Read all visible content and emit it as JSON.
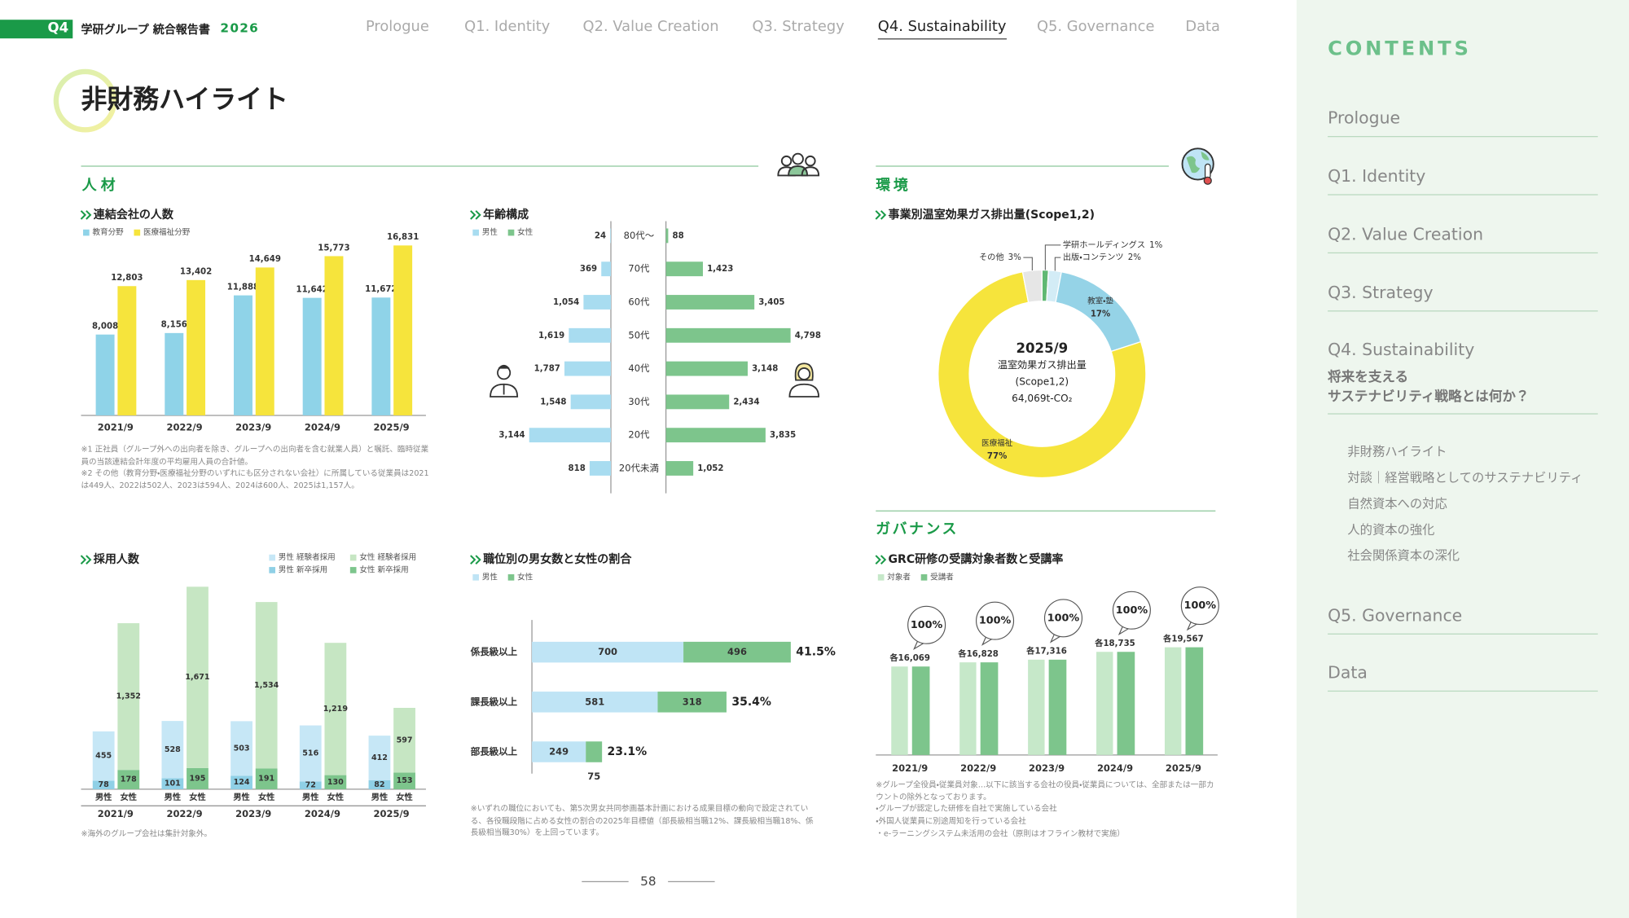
{
  "header": {
    "badge": "Q4",
    "report": "学研グループ 統合報告書",
    "year": "2026",
    "nav": [
      "Prologue",
      "Q1. Identity",
      "Q2. Value Creation",
      "Q3. Strategy",
      "Q4. Sustainability",
      "Q5. Governance",
      "Data"
    ],
    "active": 4
  },
  "page_title": "非財務ハイライト",
  "sections": {
    "people": "人材",
    "environment": "環境",
    "governance": "ガバナンス"
  },
  "chart_data": [
    {
      "type": "bar",
      "title": "連結会社の人数",
      "categories": [
        "2021/9",
        "2022/9",
        "2023/9",
        "2024/9",
        "2025/9"
      ],
      "series": [
        {
          "name": "教育分野",
          "color": "#8fd3e8",
          "values": [
            8008,
            8156,
            11888,
            11642,
            11672
          ],
          "value_labels": [
            "8,008",
            "8,156",
            "11,888",
            "11,642",
            "11,672"
          ]
        },
        {
          "name": "医療福祉分野",
          "color": "#f6e43c",
          "values": [
            12803,
            13402,
            14649,
            15773,
            16831
          ],
          "value_labels": [
            "12,803",
            "13,402",
            "14,649",
            "15,773",
            "16,831"
          ]
        }
      ],
      "ylim": [
        0,
        18000
      ]
    },
    {
      "type": "butterfly",
      "title": "年齢構成",
      "categories": [
        "80代～",
        "70代",
        "60代",
        "50代",
        "40代",
        "30代",
        "20代",
        "20代未満"
      ],
      "series": [
        {
          "name": "男性",
          "color": "#a8dcf0",
          "values": [
            24,
            369,
            1054,
            1619,
            1787,
            1548,
            3144,
            818
          ],
          "value_labels": [
            "24",
            "369",
            "1,054",
            "1,619",
            "1,787",
            "1,548",
            "3,144",
            "818"
          ]
        },
        {
          "name": "女性",
          "color": "#7dc58c",
          "values": [
            88,
            1423,
            3405,
            4798,
            3148,
            2434,
            3835,
            1052
          ],
          "value_labels": [
            "88",
            "1,423",
            "3,405",
            "4,798",
            "3,148",
            "2,434",
            "3,835",
            "1,052"
          ]
        }
      ],
      "xlim": [
        0,
        5000
      ]
    },
    {
      "type": "stacked",
      "title": "採用人数",
      "categories": [
        "2021/9",
        "2022/9",
        "2023/9",
        "2024/9",
        "2025/9"
      ],
      "stacks": [
        "男性",
        "女性"
      ],
      "series": [
        {
          "name": "男性 経験者採用",
          "stack": "男性",
          "color": "#c6e7f6",
          "values": [
            455,
            528,
            503,
            516,
            412
          ],
          "value_labels": [
            "455",
            "528",
            "503",
            "516",
            "412"
          ]
        },
        {
          "name": "男性 新卒採用",
          "stack": "男性",
          "color": "#8fd0e6",
          "values": [
            78,
            101,
            124,
            72,
            82
          ],
          "value_labels": [
            "78",
            "101",
            "124",
            "72",
            "82"
          ]
        },
        {
          "name": "女性 経験者採用",
          "stack": "女性",
          "color": "#c6e6c3",
          "values": [
            1352,
            1671,
            1534,
            1219,
            597
          ],
          "value_labels": [
            "1,352",
            "1,671",
            "1,534",
            "1,219",
            "597"
          ]
        },
        {
          "name": "女性 新卒採用",
          "stack": "女性",
          "color": "#7dc58c",
          "values": [
            178,
            195,
            191,
            130,
            153
          ],
          "value_labels": [
            "178",
            "195",
            "191",
            "130",
            "153"
          ]
        }
      ],
      "ylim": [
        0,
        2000
      ]
    },
    {
      "type": "hbar",
      "title": "職位別の男女数と女性の割合",
      "categories": [
        "係長級以上",
        "課長級以上",
        "部長級以上"
      ],
      "series": [
        {
          "name": "男性",
          "color": "#bfe4f5",
          "values": [
            700,
            581,
            249
          ]
        },
        {
          "name": "女性",
          "color": "#7dc58c",
          "values": [
            496,
            318,
            75
          ]
        }
      ],
      "shares": [
        41.5,
        35.4,
        23.1
      ],
      "share_labels": [
        "41.5%",
        "35.4%",
        "23.1%"
      ],
      "xlim": [
        0,
        1200
      ]
    },
    {
      "type": "donut",
      "title": "事業別温室効果ガス排出量(Scope1,2)",
      "labels": [
        "学研ホールディングス",
        "出版・コンテンツ",
        "教室・塾",
        "医療福祉",
        "その他"
      ],
      "values": [
        1,
        2,
        17,
        77,
        3
      ],
      "value_labels": [
        "1%",
        "2%",
        "17%",
        "77%",
        "3%"
      ],
      "colors": [
        "#5fb873",
        "#d3ecf6",
        "#95d3e7",
        "#f6e43c",
        "#e6e6e6"
      ],
      "center_text": [
        "2025/9",
        "温室効果ガス排出量",
        "(Scope1,2)",
        "64,069t-CO₂"
      ]
    },
    {
      "type": "column",
      "title": "GRC研修の受講対象者数と受講率",
      "categories": [
        "2021/9",
        "2022/9",
        "2023/9",
        "2024/9",
        "2025/9"
      ],
      "series": [
        {
          "name": "対象者",
          "color": "#c6e8c9",
          "values": [
            16069,
            16828,
            17316,
            18735,
            19567
          ]
        },
        {
          "name": "受講者",
          "color": "#7dc58c",
          "values": [
            16069,
            16828,
            17316,
            18735,
            19567
          ]
        }
      ],
      "value_labels": [
        "各16,069",
        "各16,828",
        "各17,316",
        "各18,735",
        "各19,567"
      ],
      "rates": [
        100,
        100,
        100,
        100,
        100
      ],
      "rate_labels": [
        "100%",
        "100%",
        "100%",
        "100%",
        "100%"
      ],
      "ylim": [
        0,
        20000
      ]
    }
  ],
  "notes": {
    "people": [
      "※1 正社員（グループ外への出向者を除き、グループへの出向者を含む就業人員）と嘱託、臨時従業員の当該連結会計年度の平均雇用人員の合計値。",
      "※2 その他（教育分野・医療福祉分野のいずれにも区分されない会社）に所属している従業員は2021は449人、2022は502人、2023は594人、2024は600人、2025は1,157人。"
    ],
    "recruitment": "※海外のグループ会社は集計対象外。",
    "positions": "※いずれの職位においても、第5次男女共同参画基本計画における成果目標の動向で設定されている、各役職段階に占める女性の割合の2025年目標値（部長級相当職12%、課長級相当職18%、係長級相当職30%）を上回っています。",
    "governance": [
      "※グループ全役員・従業員対象…以下に該当する会社の役員・従業員については、全部または一部カウントの除外となっております。",
      "・グループが認定した研修を自社で実施している会社",
      "・外国人従業員に別途周知を行っている会社",
      "・e-ラーニングシステム未活用の会社（原則はオフライン教材で実施）"
    ]
  },
  "page_number": 58,
  "sidebar": {
    "heading": "CONTENTS",
    "items": [
      "Prologue",
      "Q1. Identity",
      "Q2. Value Creation",
      "Q3. Strategy",
      "Q4. Sustainability",
      "Q5. Governance",
      "Data"
    ],
    "q4_subtitle": [
      "将来を支える",
      "サステナビリティ戦略とは何か？"
    ],
    "q4_links": [
      "非財務ハイライト",
      "対談｜経営戦略としてのサステナビリティ",
      "自然資本への対応",
      "人的資本の強化",
      "社会関係資本の深化"
    ]
  }
}
